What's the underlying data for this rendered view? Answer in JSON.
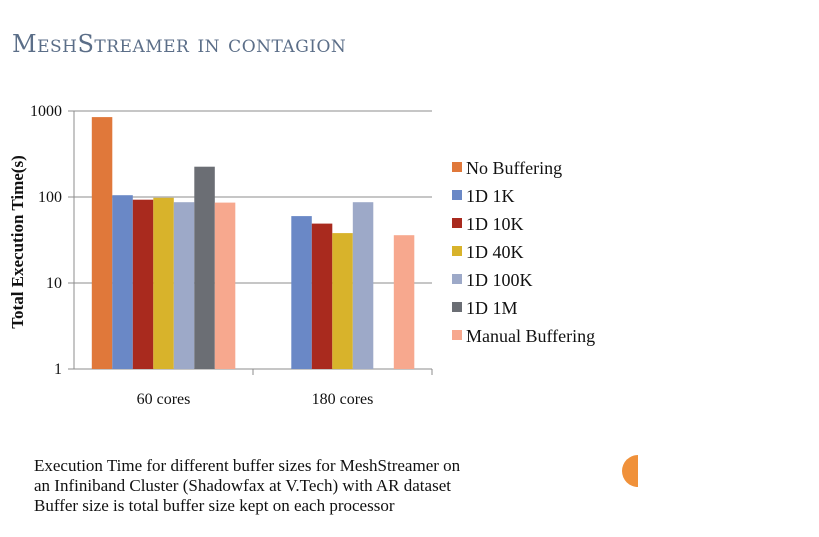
{
  "slide": {
    "title": "MeshStreamer in contagion"
  },
  "chart_data": {
    "type": "bar",
    "scale": "log",
    "ylabel": "Total Execution Time(s)",
    "ylim": [
      1,
      1000
    ],
    "yticks": [
      1,
      10,
      100,
      1000
    ],
    "ytick_labels": [
      "1",
      "10",
      "100",
      "1000"
    ],
    "categories": [
      "60 cores",
      "180 cores"
    ],
    "grid": true,
    "legend_position": "right",
    "series": [
      {
        "name": "No Buffering",
        "color": "#e0783a",
        "values": [
          850,
          null
        ]
      },
      {
        "name": "1D 1K",
        "color": "#6a88c6",
        "values": [
          105,
          60
        ]
      },
      {
        "name": "1D 10K",
        "color": "#a92a1e",
        "values": [
          93,
          49
        ]
      },
      {
        "name": "1D 40K",
        "color": "#d8b32b",
        "values": [
          98,
          38
        ]
      },
      {
        "name": "1D 100K",
        "color": "#9da9c8",
        "values": [
          87,
          87
        ]
      },
      {
        "name": "1D 1M",
        "color": "#6b6e74",
        "values": [
          225,
          null
        ]
      },
      {
        "name": "Manual Buffering",
        "color": "#f7a88e",
        "values": [
          86,
          36
        ]
      }
    ]
  },
  "caption": {
    "lines": [
      "Execution Time for different buffer sizes for MeshStreamer on",
      "an Infiniband Cluster (Shadowfax at V.Tech) with AR dataset",
      "Buffer size is total buffer size kept on each processor"
    ]
  },
  "colors": {
    "title": "#5b6e88",
    "accent_circle": "#f0913a"
  }
}
